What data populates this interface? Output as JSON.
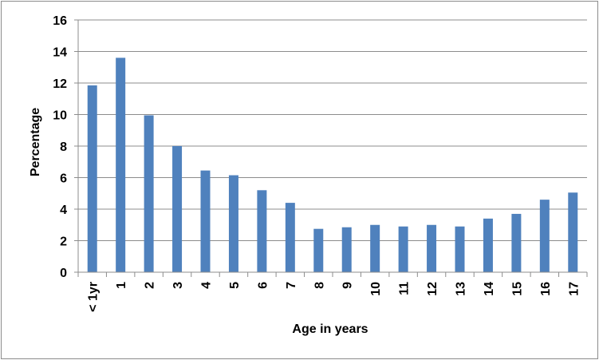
{
  "chart_data": {
    "type": "bar",
    "title": "",
    "xlabel": "Age in years",
    "ylabel": "Percentage",
    "ylim": [
      0,
      16
    ],
    "yticks": [
      "0",
      "2",
      "4",
      "6",
      "8",
      "10",
      "12",
      "14",
      "16"
    ],
    "categories": [
      "< 1yr",
      "1",
      "2",
      "3",
      "4",
      "5",
      "6",
      "7",
      "8",
      "9",
      "10",
      "11",
      "12",
      "13",
      "14",
      "15",
      "16",
      "17"
    ],
    "values": [
      11.85,
      13.6,
      9.95,
      8.0,
      6.45,
      6.15,
      5.2,
      4.4,
      2.75,
      2.85,
      3.0,
      2.9,
      3.0,
      2.9,
      3.4,
      3.7,
      4.6,
      5.05
    ],
    "grid": true,
    "bar_color": "#4f81bd",
    "grid_color": "#8c8c8c"
  }
}
